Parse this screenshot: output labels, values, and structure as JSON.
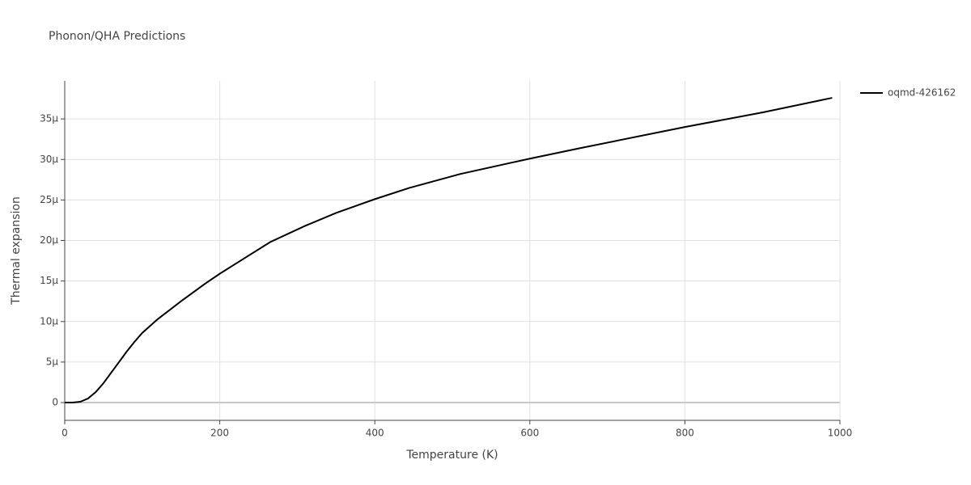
{
  "chart_data": {
    "type": "line",
    "title": "Phonon/QHA Predictions",
    "xlabel": "Temperature (K)",
    "ylabel": "Thermal expansion",
    "x": [
      0,
      10,
      20,
      30,
      40,
      50,
      60,
      70,
      80,
      90,
      100,
      120,
      150,
      180,
      200,
      225,
      265,
      310,
      350,
      400,
      445,
      510,
      600,
      665,
      800,
      900,
      990
    ],
    "series": [
      {
        "name": "oqmd-426162",
        "color": "#000000",
        "values": [
          0,
          0,
          1e-07,
          5e-07,
          1.3e-06,
          2.4e-06,
          3.7e-06,
          5e-06,
          6.3e-06,
          7.5e-06,
          8.6e-06,
          1.03e-05,
          1.25e-05,
          1.46e-05,
          1.59e-05,
          1.74e-05,
          1.98e-05,
          2.18e-05,
          2.34e-05,
          2.51e-05,
          2.65e-05,
          2.82e-05,
          3.01e-05,
          3.14e-05,
          3.4e-05,
          3.58e-05,
          3.76e-05
        ]
      }
    ],
    "xlim": [
      0,
      1000
    ],
    "xticks": [
      0,
      200,
      400,
      600,
      800,
      1000
    ],
    "ylim": [
      -2.19e-06,
      3.97e-05
    ],
    "yticks": [
      {
        "value": 0,
        "label": "0"
      },
      {
        "value": 5e-06,
        "label": "5μ"
      },
      {
        "value": 1e-05,
        "label": "10μ"
      },
      {
        "value": 1.5e-05,
        "label": "15μ"
      },
      {
        "value": 2e-05,
        "label": "20μ"
      },
      {
        "value": 2.5e-05,
        "label": "25μ"
      },
      {
        "value": 3e-05,
        "label": "30μ"
      },
      {
        "value": 3.5e-05,
        "label": "35μ"
      }
    ],
    "grid": true,
    "legend": "right"
  }
}
